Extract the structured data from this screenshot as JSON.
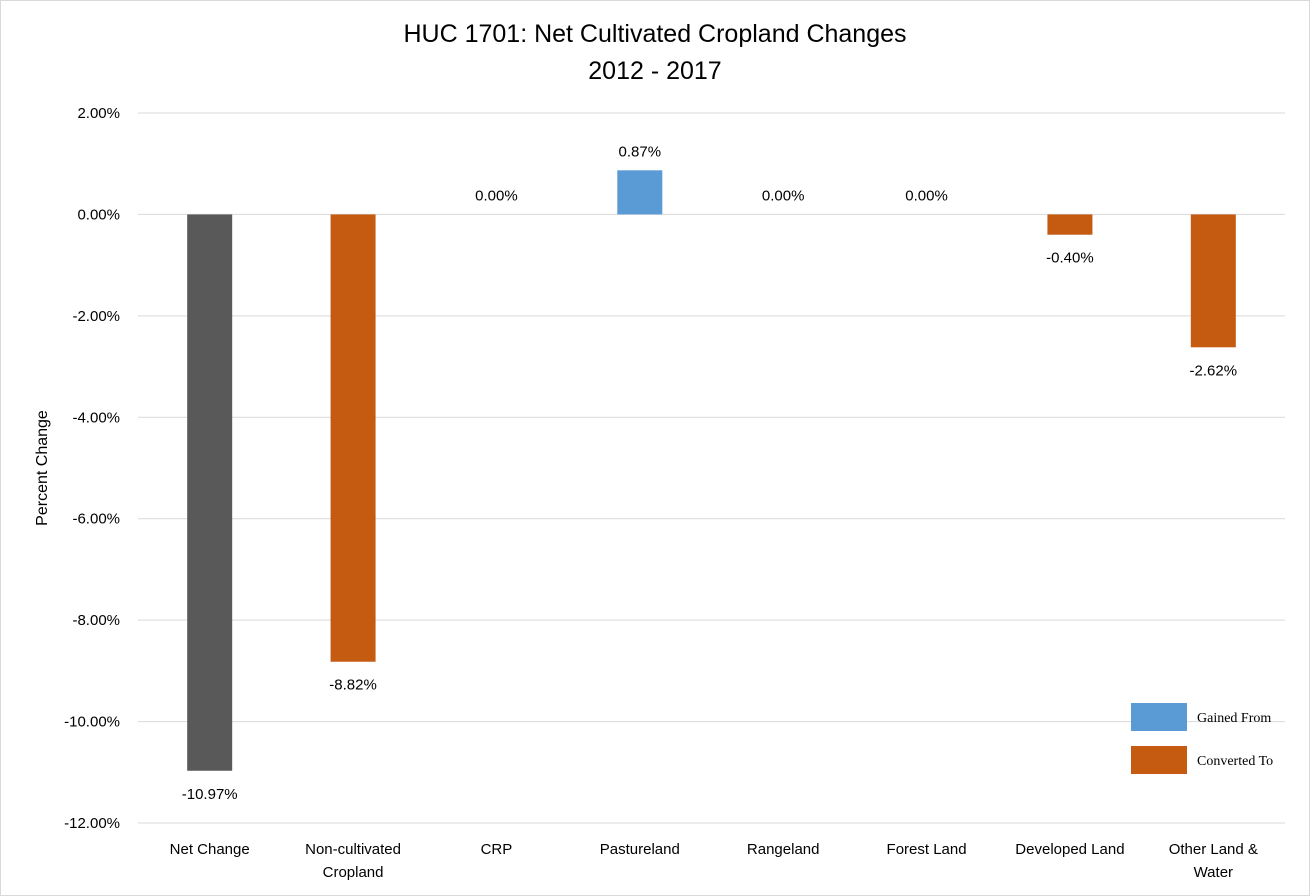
{
  "chart_data": {
    "type": "bar",
    "title": "HUC 1701: Net Cultivated Cropland Changes",
    "subtitle": "2012 - 2017",
    "ylabel": "Percent Change",
    "xlabel": "",
    "ylim": [
      -12,
      2
    ],
    "ytick_step": 2,
    "ytick_labels": [
      "2.00%",
      "0.00%",
      "-2.00%",
      "-4.00%",
      "-6.00%",
      "-8.00%",
      "-10.00%",
      "-12.00%"
    ],
    "grid": true,
    "categories": [
      [
        "Net Change"
      ],
      [
        "Non-cultivated",
        "Cropland"
      ],
      [
        "CRP"
      ],
      [
        "Pastureland"
      ],
      [
        "Rangeland"
      ],
      [
        "Forest Land"
      ],
      [
        "Developed Land"
      ],
      [
        "Other Land &",
        "Water"
      ]
    ],
    "values": [
      -10.97,
      -8.82,
      0.0,
      0.87,
      0.0,
      0.0,
      -0.4,
      -2.62
    ],
    "data_labels": [
      "-10.97%",
      "-8.82%",
      "0.00%",
      "0.87%",
      "0.00%",
      "0.00%",
      "-0.40%",
      "-2.62%"
    ],
    "bar_colors": [
      "#595959",
      "#c55a11",
      "#c55a11",
      "#5b9bd5",
      "#c55a11",
      "#c55a11",
      "#c55a11",
      "#c55a11"
    ],
    "legend": {
      "position": "bottom-right",
      "items": [
        {
          "label": "Gained From",
          "color": "#5b9bd5"
        },
        {
          "label": "Converted To",
          "color": "#c55a11"
        }
      ]
    }
  }
}
